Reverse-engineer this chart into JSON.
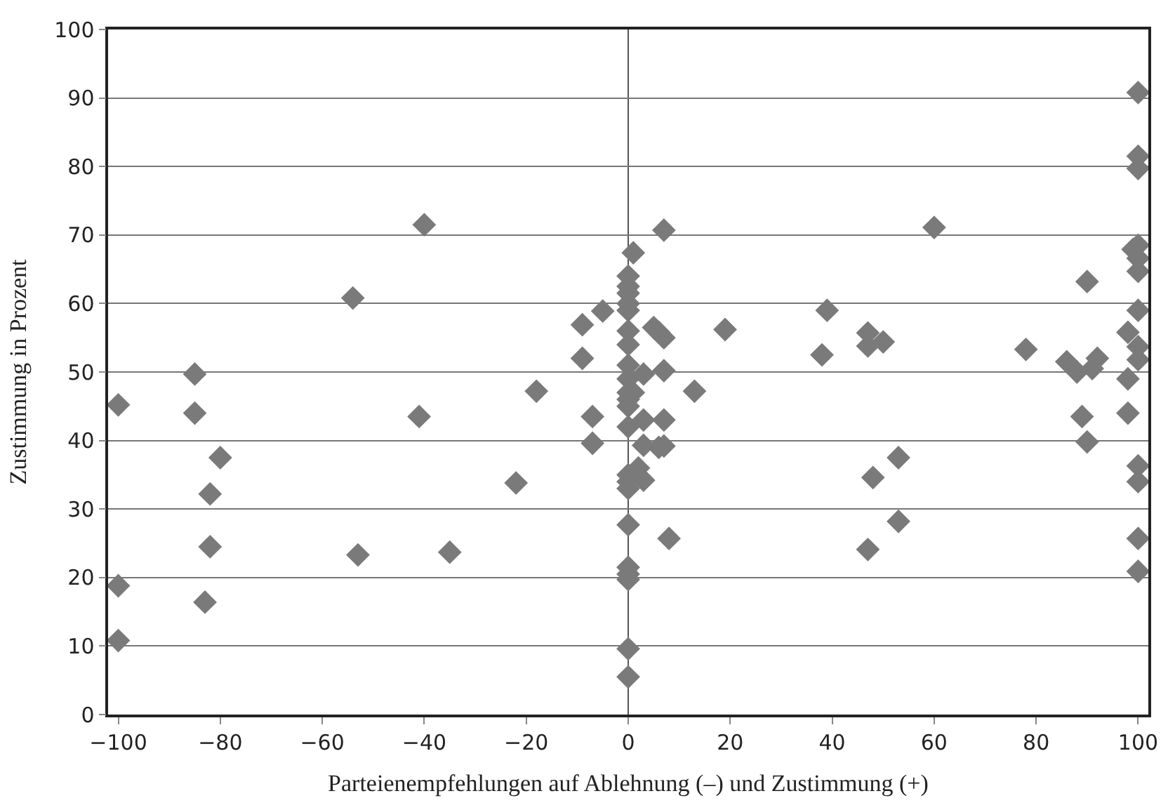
{
  "chart_data": {
    "type": "scatter",
    "xlabel": "Parteienempfehlungen auf Ablehnung (–) und Zustimmung (+)",
    "ylabel": "Zustimmung in Prozent",
    "x": [
      -100,
      -100,
      -100,
      -85,
      -85,
      -82,
      -82,
      -83,
      -80,
      -54,
      -53,
      -40,
      -41,
      -35,
      -22,
      -18,
      -9,
      -9,
      -7,
      -7,
      -5,
      1,
      0,
      0,
      0,
      0,
      0,
      0,
      0,
      0,
      0,
      0,
      0,
      0,
      0,
      0,
      0,
      0,
      0,
      0,
      0,
      0,
      0,
      0,
      1,
      3,
      3,
      3,
      3,
      2,
      5,
      6,
      7,
      7,
      7,
      6,
      7,
      7,
      8,
      13,
      19,
      38,
      39,
      47,
      47,
      48,
      47,
      50,
      53,
      53,
      60,
      78,
      86,
      88,
      89,
      90,
      91,
      90,
      92,
      98,
      98,
      98,
      99,
      100,
      100,
      100,
      100,
      100,
      100,
      100,
      100,
      100,
      100,
      100,
      100,
      100
    ],
    "series": [
      {
        "color": "#7a7a7a",
        "values": [
          45.2,
          18.8,
          10.8,
          49.7,
          44,
          32.2,
          24.5,
          16.4,
          37.5,
          60.8,
          23.3,
          71.5,
          43.5,
          23.7,
          33.8,
          47.2,
          56.9,
          52,
          43.5,
          39.6,
          58.9,
          67.4,
          64,
          62.5,
          61.5,
          60,
          59,
          56,
          54,
          51,
          49,
          47,
          46,
          45,
          42,
          35,
          34,
          33,
          27.7,
          21.5,
          20.5,
          19.7,
          9.6,
          5.5,
          47,
          49.7,
          43,
          39.3,
          34.2,
          36,
          56.5,
          55.8,
          55,
          50.2,
          43,
          39,
          39.2,
          70.7,
          25.7,
          47.2,
          56.2,
          52.5,
          59,
          55.7,
          53.8,
          34.6,
          24.1,
          54.4,
          37.5,
          28.2,
          71.1,
          53.3,
          51.5,
          50,
          43.5,
          63.2,
          50.5,
          39.8,
          52,
          55.8,
          49,
          44,
          67.9,
          90.8,
          81.5,
          79.7,
          68.5,
          66.6,
          64.7,
          59,
          53.7,
          51.8,
          36.3,
          34,
          25.7,
          20.9
        ]
      }
    ],
    "xlim": [
      -102,
      102
    ],
    "xticks": [
      -100,
      -80,
      -60,
      -40,
      -20,
      0,
      20,
      40,
      60,
      80,
      100
    ],
    "ylim": [
      0,
      100
    ],
    "yticks": [
      0,
      10,
      20,
      30,
      40,
      50,
      60,
      70,
      80,
      90,
      100
    ],
    "grid": "y",
    "marker": "diamond",
    "legend": false,
    "ref_lines": [
      {
        "axis": "x",
        "value": 0,
        "color": "#555555"
      }
    ]
  }
}
